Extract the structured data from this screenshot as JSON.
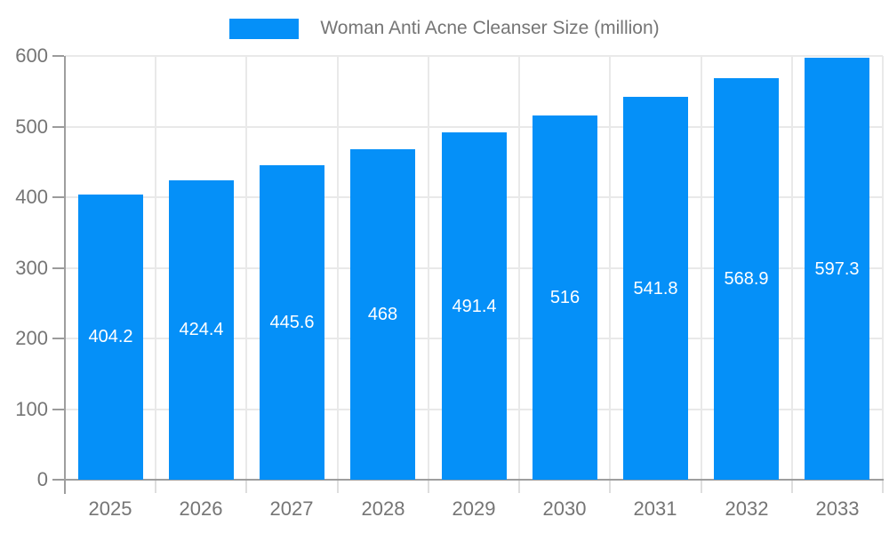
{
  "legend": {
    "label": "Woman Anti Acne Cleanser Size (million)",
    "swatch_color": "#0590f8"
  },
  "chart_data": {
    "type": "bar",
    "title": "Woman Anti Acne Cleanser Size (million)",
    "categories": [
      "2025",
      "2026",
      "2027",
      "2028",
      "2029",
      "2030",
      "2031",
      "2032",
      "2033"
    ],
    "values": [
      404.2,
      424.4,
      445.6,
      468,
      491.4,
      516,
      541.8,
      568.9,
      597.3
    ],
    "value_labels": [
      "404.2",
      "424.4",
      "445.6",
      "468",
      "491.4",
      "516",
      "541.8",
      "568.9",
      "597.3"
    ],
    "xlabel": "",
    "ylabel": "",
    "ylim": [
      0,
      600
    ],
    "yticks": [
      0,
      100,
      200,
      300,
      400,
      500,
      600
    ],
    "grid": true,
    "legend_position": "top",
    "colors": {
      "bar": "#0590f8",
      "grid": "#e9e9e9",
      "axis": "#9e9e9e",
      "tick_text": "#757575",
      "value_text": "#ffffff",
      "background": "#ffffff"
    }
  }
}
